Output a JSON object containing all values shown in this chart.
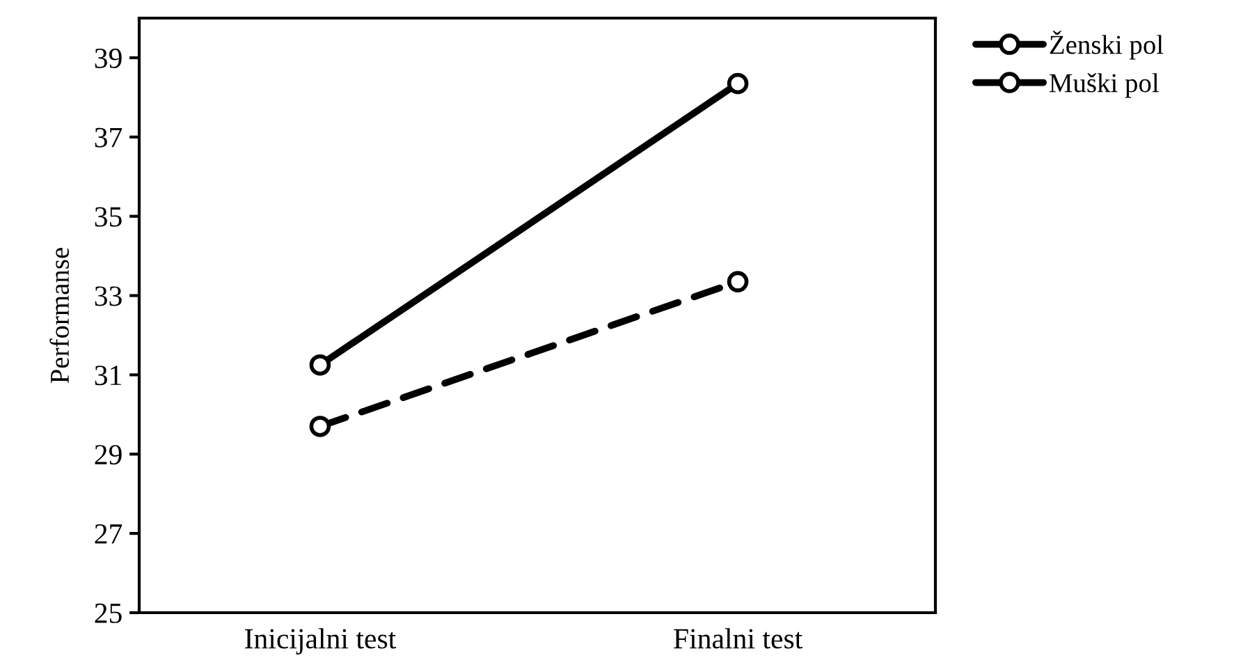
{
  "chart_data": {
    "type": "line",
    "ylabel": "Performanse",
    "categories": [
      "Inicijalni test",
      "Finalni test"
    ],
    "series": [
      {
        "name": "Ženski pol",
        "color": "#000000",
        "values": [
          31.25,
          38.35
        ],
        "line_style": "solid"
      },
      {
        "name": "Muški pol",
        "color": "#000000",
        "values": [
          29.7,
          33.35
        ],
        "line_style": "dashed"
      }
    ],
    "ylim": [
      25,
      40
    ],
    "yticks": [
      25,
      27,
      29,
      31,
      33,
      35,
      37,
      39
    ],
    "marker": "circle",
    "grid": false,
    "legend": "top right"
  }
}
